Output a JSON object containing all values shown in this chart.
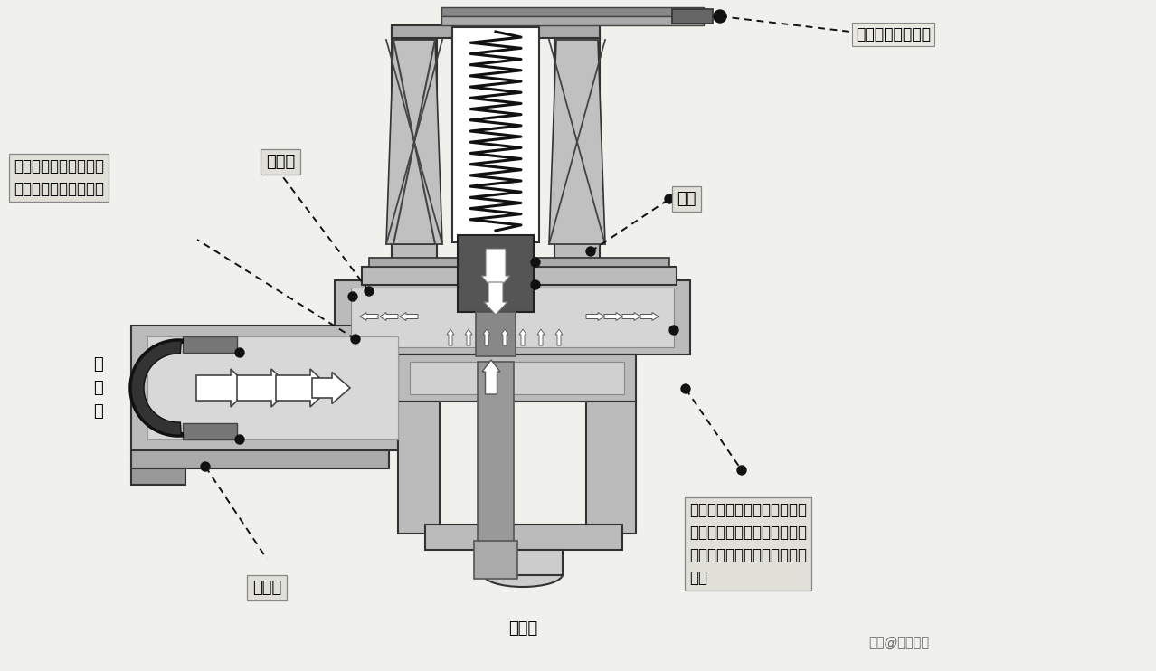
{
  "bg_color": "#f0f0ec",
  "labels": {
    "top_right": "进水电磁阀未通电",
    "control_chamber": "控制腔",
    "iron_core": "铁心",
    "inlet": "进\n水\n口",
    "inlet_chamber": "进水腔",
    "outlet": "出水口",
    "flow_desc": "水由进水腔流入，通过\n加压孔流入到控制腔内",
    "rubber_desc": "橡胶阀和塑料盘在弹簧弹力、\n铁心重力和水压压力的共同作\n用下，紧紧地压在出水口的管\n道口",
    "watermark": "头条@维修人家"
  }
}
